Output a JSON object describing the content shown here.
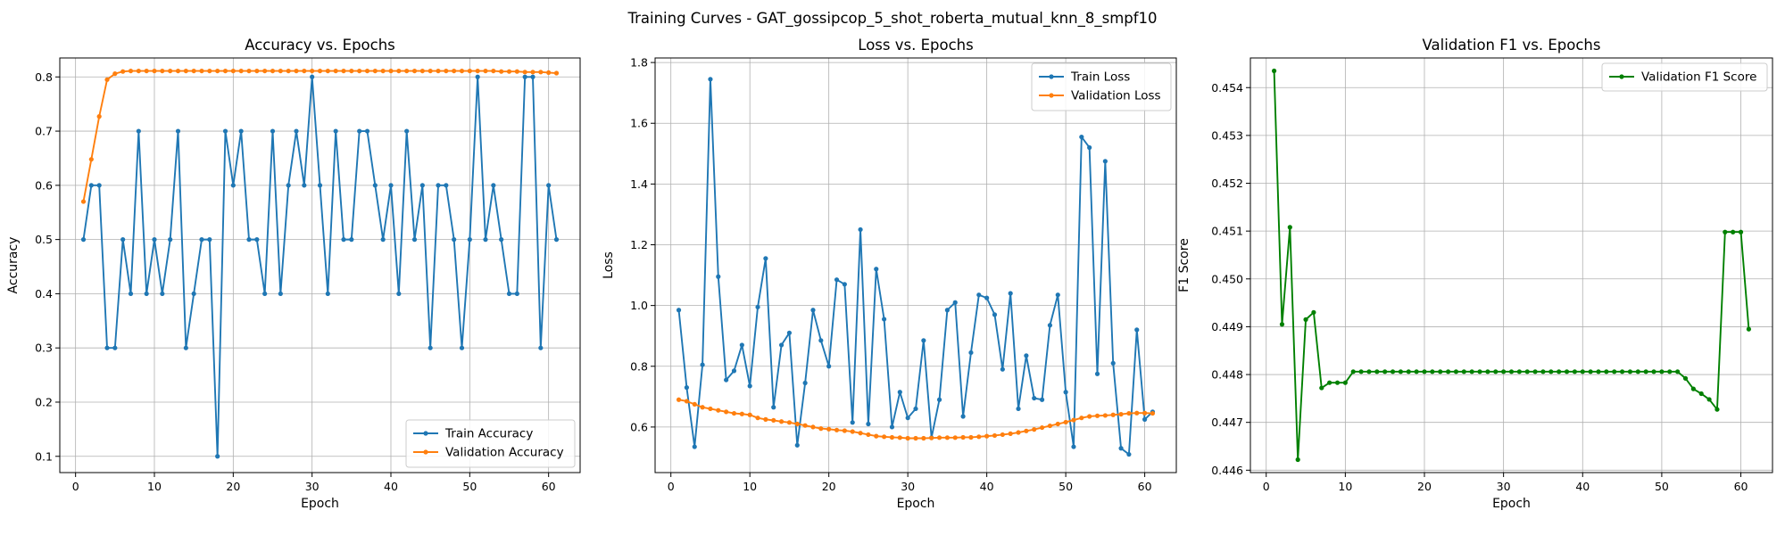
{
  "figure": {
    "suptitle": "Training Curves - GAT_gossipcop_5_shot_roberta_mutual_knn_8_smpf10"
  },
  "colors": {
    "blue": "#1f77b4",
    "orange": "#ff7f0e",
    "green": "#008000",
    "grid": "#b0b0b0"
  },
  "chart_data": [
    {
      "type": "line",
      "title": "Accuracy vs. Epochs",
      "xlabel": "Epoch",
      "ylabel": "Accuracy",
      "xlim": [
        -2,
        64
      ],
      "ylim": [
        0.07,
        0.835
      ],
      "xticks": [
        0,
        10,
        20,
        30,
        40,
        50,
        60
      ],
      "yticks": [
        0.1,
        0.2,
        0.3,
        0.4,
        0.5,
        0.6,
        0.7,
        0.8
      ],
      "ytick_labels": [
        "0.1",
        "0.2",
        "0.3",
        "0.4",
        "0.5",
        "0.6",
        "0.7",
        "0.8"
      ],
      "grid": true,
      "legend": "lower right",
      "x": [
        1,
        2,
        3,
        4,
        5,
        6,
        7,
        8,
        9,
        10,
        11,
        12,
        13,
        14,
        15,
        16,
        17,
        18,
        19,
        20,
        21,
        22,
        23,
        24,
        25,
        26,
        27,
        28,
        29,
        30,
        31,
        32,
        33,
        34,
        35,
        36,
        37,
        38,
        39,
        40,
        41,
        42,
        43,
        44,
        45,
        46,
        47,
        48,
        49,
        50,
        51,
        52,
        53,
        54,
        55,
        56,
        57,
        58,
        59,
        60,
        61
      ],
      "series": [
        {
          "name": "Train Accuracy",
          "color": "#1f77b4",
          "values": [
            0.5,
            0.6,
            0.6,
            0.3,
            0.3,
            0.5,
            0.4,
            0.7,
            0.4,
            0.5,
            0.4,
            0.5,
            0.7,
            0.3,
            0.4,
            0.5,
            0.5,
            0.1,
            0.7,
            0.6,
            0.7,
            0.5,
            0.5,
            0.4,
            0.7,
            0.4,
            0.6,
            0.7,
            0.6,
            0.8,
            0.6,
            0.4,
            0.7,
            0.5,
            0.5,
            0.7,
            0.7,
            0.6,
            0.5,
            0.6,
            0.4,
            0.7,
            0.5,
            0.6,
            0.3,
            0.6,
            0.6,
            0.5,
            0.3,
            0.5,
            0.8,
            0.5,
            0.6,
            0.5,
            0.4,
            0.4,
            0.8,
            0.8,
            0.3,
            0.6,
            0.5
          ]
        },
        {
          "name": "Validation Accuracy",
          "color": "#ff7f0e",
          "values": [
            0.57,
            0.648,
            0.727,
            0.795,
            0.806,
            0.81,
            0.811,
            0.811,
            0.811,
            0.811,
            0.811,
            0.811,
            0.811,
            0.811,
            0.811,
            0.811,
            0.811,
            0.811,
            0.811,
            0.811,
            0.811,
            0.811,
            0.811,
            0.811,
            0.811,
            0.811,
            0.811,
            0.811,
            0.811,
            0.811,
            0.811,
            0.811,
            0.811,
            0.811,
            0.811,
            0.811,
            0.811,
            0.811,
            0.811,
            0.811,
            0.811,
            0.811,
            0.811,
            0.811,
            0.811,
            0.811,
            0.811,
            0.811,
            0.811,
            0.811,
            0.811,
            0.811,
            0.811,
            0.81,
            0.81,
            0.81,
            0.809,
            0.809,
            0.809,
            0.808,
            0.807
          ]
        }
      ]
    },
    {
      "type": "line",
      "title": "Loss vs. Epochs",
      "xlabel": "Epoch",
      "ylabel": "Loss",
      "xlim": [
        -2,
        64
      ],
      "ylim": [
        0.45,
        1.815
      ],
      "xticks": [
        0,
        10,
        20,
        30,
        40,
        50,
        60
      ],
      "yticks": [
        0.6,
        0.8,
        1.0,
        1.2,
        1.4,
        1.6,
        1.8
      ],
      "ytick_labels": [
        "0.6",
        "0.8",
        "1.0",
        "1.2",
        "1.4",
        "1.6",
        "1.8"
      ],
      "grid": true,
      "legend": "upper right",
      "x": [
        1,
        2,
        3,
        4,
        5,
        6,
        7,
        8,
        9,
        10,
        11,
        12,
        13,
        14,
        15,
        16,
        17,
        18,
        19,
        20,
        21,
        22,
        23,
        24,
        25,
        26,
        27,
        28,
        29,
        30,
        31,
        32,
        33,
        34,
        35,
        36,
        37,
        38,
        39,
        40,
        41,
        42,
        43,
        44,
        45,
        46,
        47,
        48,
        49,
        50,
        51,
        52,
        53,
        54,
        55,
        56,
        57,
        58,
        59,
        60,
        61
      ],
      "series": [
        {
          "name": "Train Loss",
          "color": "#1f77b4",
          "values": [
            0.985,
            0.73,
            0.535,
            0.805,
            1.745,
            1.095,
            0.755,
            0.785,
            0.87,
            0.735,
            0.995,
            1.155,
            0.665,
            0.87,
            0.91,
            0.54,
            0.745,
            0.985,
            0.885,
            0.8,
            1.085,
            1.07,
            0.615,
            1.25,
            0.61,
            1.12,
            0.955,
            0.6,
            0.715,
            0.63,
            0.66,
            0.885,
            0.565,
            0.69,
            0.985,
            1.01,
            0.635,
            0.845,
            1.035,
            1.025,
            0.97,
            0.79,
            1.04,
            0.66,
            0.835,
            0.695,
            0.69,
            0.935,
            1.035,
            0.715,
            0.535,
            1.555,
            1.52,
            0.775,
            1.475,
            0.81,
            0.53,
            0.51,
            0.92,
            0.625,
            0.65
          ]
        },
        {
          "name": "Validation Loss",
          "color": "#ff7f0e",
          "values": [
            0.69,
            0.685,
            0.675,
            0.665,
            0.66,
            0.655,
            0.65,
            0.645,
            0.643,
            0.64,
            0.63,
            0.625,
            0.622,
            0.618,
            0.615,
            0.61,
            0.605,
            0.6,
            0.595,
            0.593,
            0.59,
            0.588,
            0.585,
            0.58,
            0.575,
            0.57,
            0.568,
            0.566,
            0.565,
            0.563,
            0.563,
            0.563,
            0.564,
            0.565,
            0.565,
            0.565,
            0.566,
            0.566,
            0.568,
            0.57,
            0.572,
            0.575,
            0.578,
            0.582,
            0.587,
            0.592,
            0.598,
            0.604,
            0.61,
            0.616,
            0.623,
            0.63,
            0.635,
            0.637,
            0.638,
            0.64,
            0.642,
            0.645,
            0.646,
            0.646,
            0.645
          ]
        }
      ]
    },
    {
      "type": "line",
      "title": "Validation F1 vs. Epochs",
      "xlabel": "Epoch",
      "ylabel": "F1 Score",
      "xlim": [
        -2,
        64
      ],
      "ylim": [
        0.44595,
        0.45462
      ],
      "xticks": [
        0,
        10,
        20,
        30,
        40,
        50,
        60
      ],
      "yticks": [
        0.446,
        0.447,
        0.448,
        0.449,
        0.45,
        0.451,
        0.452,
        0.453,
        0.454
      ],
      "ytick_labels": [
        "0.446",
        "0.447",
        "0.448",
        "0.449",
        "0.450",
        "0.451",
        "0.452",
        "0.453",
        "0.454"
      ],
      "grid": true,
      "legend": "upper right",
      "x": [
        1,
        2,
        3,
        4,
        5,
        6,
        7,
        8,
        9,
        10,
        11,
        12,
        13,
        14,
        15,
        16,
        17,
        18,
        19,
        20,
        21,
        22,
        23,
        24,
        25,
        26,
        27,
        28,
        29,
        30,
        31,
        32,
        33,
        34,
        35,
        36,
        37,
        38,
        39,
        40,
        41,
        42,
        43,
        44,
        45,
        46,
        47,
        48,
        49,
        50,
        51,
        52,
        53,
        54,
        55,
        56,
        57,
        58,
        59,
        60,
        61
      ],
      "series": [
        {
          "name": "Validation F1 Score",
          "color": "#008000",
          "values": [
            0.45435,
            0.44905,
            0.45108,
            0.44622,
            0.44915,
            0.4493,
            0.44772,
            0.44783,
            0.44783,
            0.44783,
            0.44806,
            0.44806,
            0.44806,
            0.44806,
            0.44806,
            0.44806,
            0.44806,
            0.44806,
            0.44806,
            0.44806,
            0.44806,
            0.44806,
            0.44806,
            0.44806,
            0.44806,
            0.44806,
            0.44806,
            0.44806,
            0.44806,
            0.44806,
            0.44806,
            0.44806,
            0.44806,
            0.44806,
            0.44806,
            0.44806,
            0.44806,
            0.44806,
            0.44806,
            0.44806,
            0.44806,
            0.44806,
            0.44806,
            0.44806,
            0.44806,
            0.44806,
            0.44806,
            0.44806,
            0.44806,
            0.44806,
            0.44806,
            0.44806,
            0.44792,
            0.4477,
            0.4476,
            0.44748,
            0.44727,
            0.45098,
            0.45098,
            0.45098,
            0.44895
          ]
        }
      ]
    }
  ]
}
